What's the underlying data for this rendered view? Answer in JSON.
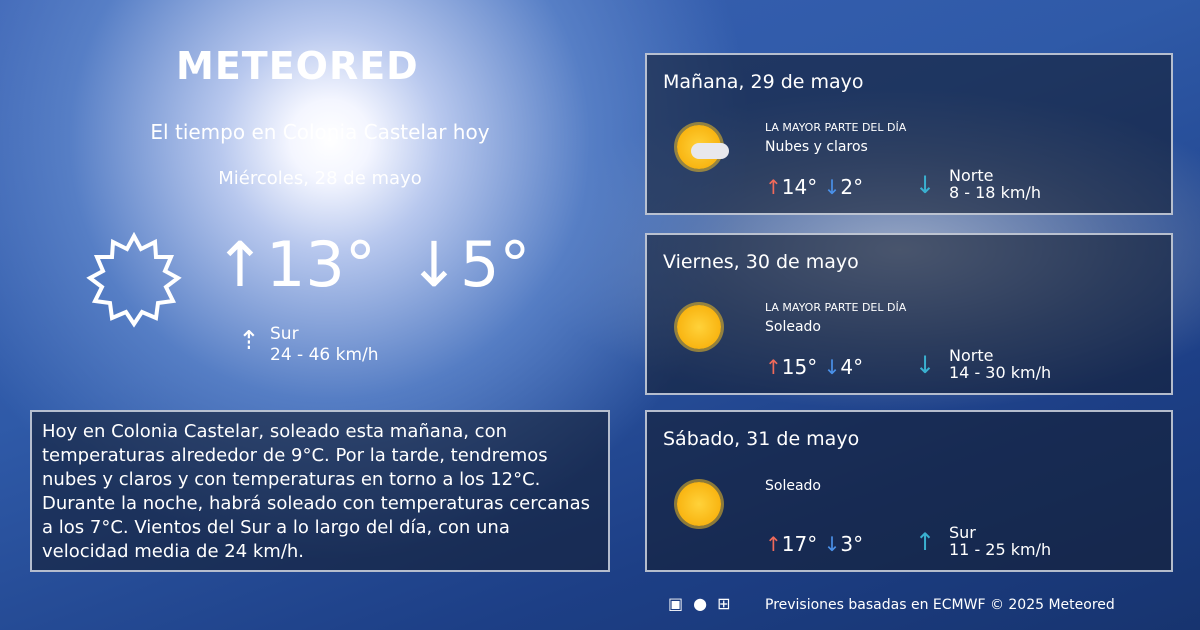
{
  "brand": "METEORED",
  "header": {
    "title": "El tiempo en Colonia Castelar hoy",
    "date": "Miércoles, 28 de mayo"
  },
  "today": {
    "icon": "sun-outline-icon",
    "max": "↑13°",
    "min": "↓5°",
    "wind_dir": "Sur",
    "wind_speed": "24 - 46 km/h"
  },
  "summary": "Hoy en Colonia Castelar, soleado esta mañana, con temperaturas alrededor de 9°C. Por la tarde, tendremos nubes y claros y con temperaturas en torno a los 12°C. Durante la noche, habrá soleado  con temperaturas cercanas a los 7°C. Vientos del Sur a lo largo del día, con una velocidad media de 24 km/h.",
  "forecast": [
    {
      "date": "Mañana, 29 de mayo",
      "label": "LA MAYOR PARTE DEL DÍA",
      "condition": "Nubes y claros",
      "max": "14°",
      "min": "2°",
      "wind_dir": "Norte",
      "wind_speed": "8 - 18 km/h",
      "icon": "sun-cloud-icon"
    },
    {
      "date": "Viernes, 30 de mayo",
      "label": "LA MAYOR PARTE DEL DÍA",
      "condition": "Soleado",
      "max": "15°",
      "min": "4°",
      "wind_dir": "Norte",
      "wind_speed": "14 - 30 km/h",
      "icon": "sun-icon"
    },
    {
      "date": "Sábado, 31 de mayo",
      "label": "",
      "condition": "Soleado",
      "max": "17°",
      "min": "3°",
      "wind_dir": "Sur",
      "wind_speed": "11 - 25 km/h",
      "icon": "sun-icon"
    }
  ],
  "footer": {
    "text": "Previsiones basadas en ECMWF © 2025 Meteored",
    "icons": [
      "android-icon",
      "apple-icon",
      "windows-icon"
    ]
  }
}
